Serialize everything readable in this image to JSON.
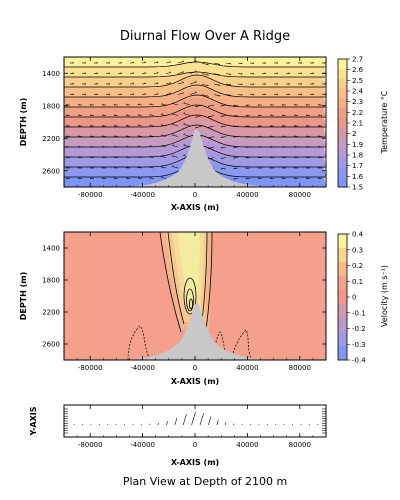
{
  "chart_data": [
    {
      "type": "contour",
      "title": "Diurnal Flow Over A Ridge",
      "xlabel": "X-AXIS (m)",
      "ylabel": "DEPTH (m)",
      "x_ticks": [
        "-80000",
        "-40000",
        "0",
        "40000",
        "80000"
      ],
      "x_tick_values": [
        -80000,
        -40000,
        0,
        40000,
        80000
      ],
      "y_ticks": [
        "1400",
        "1800",
        "2200",
        "2600"
      ],
      "y_tick_values": [
        1400,
        1800,
        2200,
        2600
      ],
      "xlim": [
        -100000,
        100000
      ],
      "ylim": [
        2800,
        1200
      ],
      "colorbar": {
        "label": "Temperature °C",
        "ticks": [
          "2.7",
          "2.6",
          "2.5",
          "2.4",
          "2.3",
          "2.2",
          "2.1",
          "2",
          "1.9",
          "1.8",
          "1.7",
          "1.6",
          "1.5"
        ],
        "colors_top_to_bottom": [
          "#fbf39a",
          "#fbe192",
          "#fbd08b",
          "#f9bf86",
          "#f5af85",
          "#f0a185",
          "#ea9688",
          "#d998a6",
          "#c79ac0",
          "#b39ad6",
          "#a09ae6",
          "#8d98f0",
          "#7f94f5"
        ]
      },
      "features": [
        "isotherm contours",
        "velocity vectors",
        "grey ridge"
      ]
    },
    {
      "type": "contour",
      "xlabel": "X-AXIS (m)",
      "ylabel": "DEPTH (m)",
      "x_ticks": [
        "-80000",
        "-40000",
        "0",
        "40000",
        "80000"
      ],
      "x_tick_values": [
        -80000,
        -40000,
        0,
        40000,
        80000
      ],
      "y_ticks": [
        "1400",
        "1800",
        "2200",
        "2600"
      ],
      "y_tick_values": [
        1400,
        1800,
        2200,
        2600
      ],
      "xlim": [
        -100000,
        100000
      ],
      "ylim": [
        2800,
        1200
      ],
      "colorbar": {
        "label": "Velocity (m s⁻¹)",
        "ticks": [
          "0.4",
          "0.3",
          "0.2",
          "0.1",
          "0",
          "-0.1",
          "-0.2",
          "-0.3",
          "-0.4"
        ],
        "colors_top_to_bottom": [
          "#fbf39a",
          "#fad58c",
          "#f7bb86",
          "#f1a386",
          "#f2978a",
          "#d39aab",
          "#b89ace",
          "#9e9ae4",
          "#8494f2"
        ]
      },
      "background_color": "#f4a08c",
      "features": [
        "solid contours above ridge",
        "dashed negative contours",
        "grey ridge"
      ]
    },
    {
      "type": "quiver",
      "title": "Plan View at Depth of 2100 m",
      "xlabel": "X-AXIS (m)",
      "ylabel": "Y-AXIS",
      "x_ticks": [
        "-80000",
        "-40000",
        "0",
        "40000",
        "80000"
      ],
      "x_tick_values": [
        -80000,
        -40000,
        0,
        40000,
        80000
      ],
      "xlim": [
        -100000,
        100000
      ]
    }
  ]
}
